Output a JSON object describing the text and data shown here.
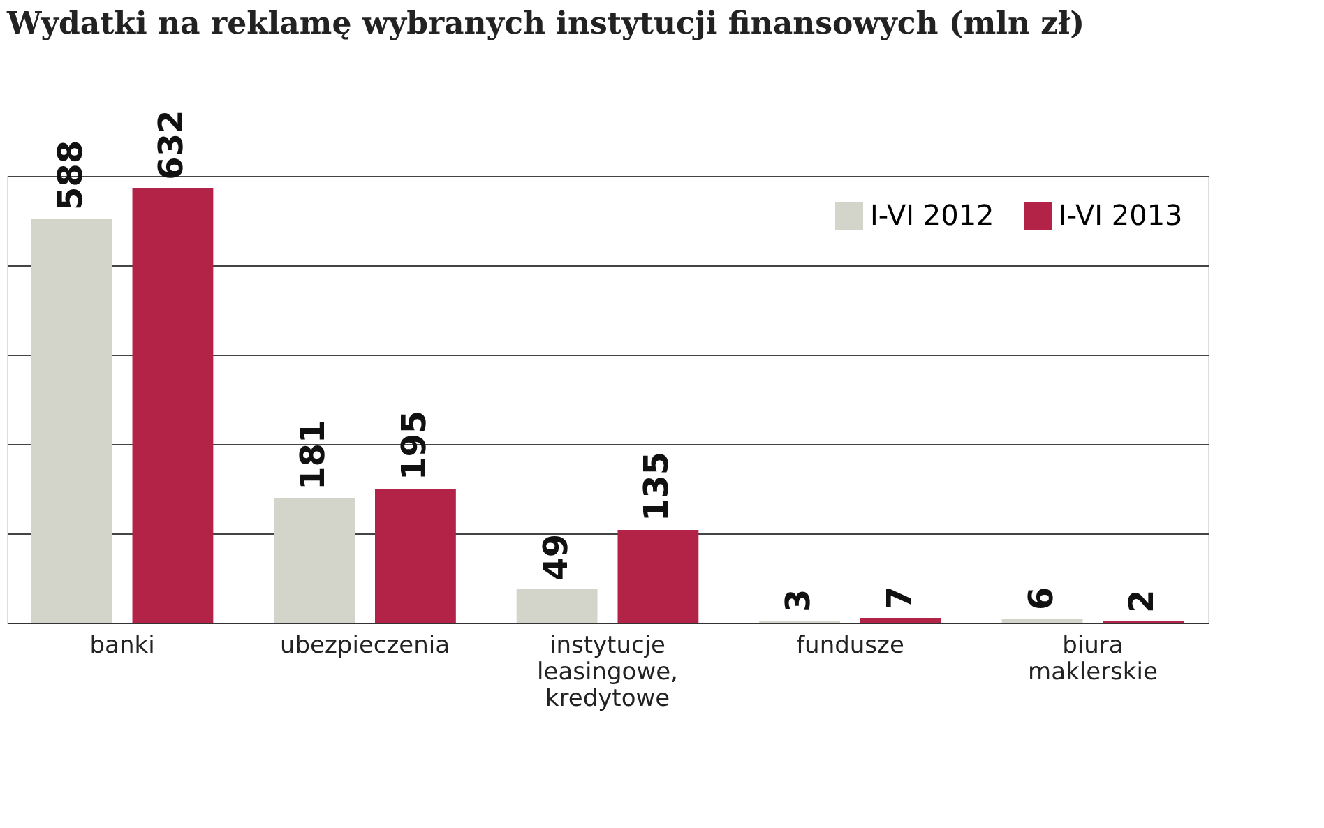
{
  "chart_data": {
    "type": "bar",
    "title": "Wydatki na reklamę wybranych instytucji finansowych (mln zł)",
    "categories": [
      "banki",
      "ubezpieczenia",
      "instytucje leasingowe, kredytowe",
      "fundusze",
      "biura maklerskie"
    ],
    "series": [
      {
        "name": "I-VI 2012",
        "color": "#d4d5ca",
        "values": [
          588,
          181,
          49,
          3,
          6
        ]
      },
      {
        "name": "I-VI 2013",
        "color": "#b32347",
        "values": [
          632,
          195,
          135,
          7,
          2
        ]
      }
    ],
    "ylim": [
      0,
      650
    ],
    "yticks": [
      {
        "value": 0,
        "label": null
      },
      {
        "value": 130,
        "label": null
      },
      {
        "value": 260,
        "label": null
      },
      {
        "value": 390,
        "label": null
      },
      {
        "value": 520,
        "label": null
      },
      {
        "value": 650,
        "label": null
      }
    ],
    "tick_labels": "x",
    "grid": "y",
    "legend": "top right",
    "data_labels": true
  }
}
